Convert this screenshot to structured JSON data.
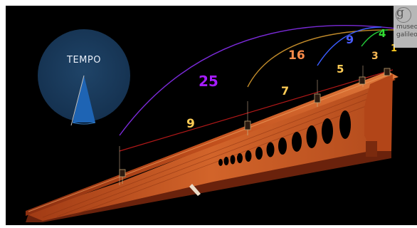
{
  "tempo": {
    "label": "TEMPO"
  },
  "museum_logo": {
    "mark": "g",
    "line1": "museo",
    "line2": "galileo"
  },
  "distances": [
    {
      "value": "1",
      "color": "#ffcc22"
    },
    {
      "value": "3",
      "color": "#ffbb55"
    },
    {
      "value": "5",
      "color": "#ffcc55"
    },
    {
      "value": "7",
      "color": "#ffcc55"
    },
    {
      "value": "9",
      "color": "#ffcc55"
    }
  ],
  "cumulative": [
    {
      "value": "4",
      "color": "#33dd33"
    },
    {
      "value": "9",
      "color": "#4a5cff"
    },
    {
      "value": "16",
      "color": "#ff8c4a"
    },
    {
      "value": "25",
      "color": "#a61cff"
    }
  ],
  "colors": {
    "background": "#000000",
    "wood": "#c4501c",
    "dial": "#1a3a5c",
    "needle": "#1e64b4",
    "segment_line": "#b01818"
  }
}
